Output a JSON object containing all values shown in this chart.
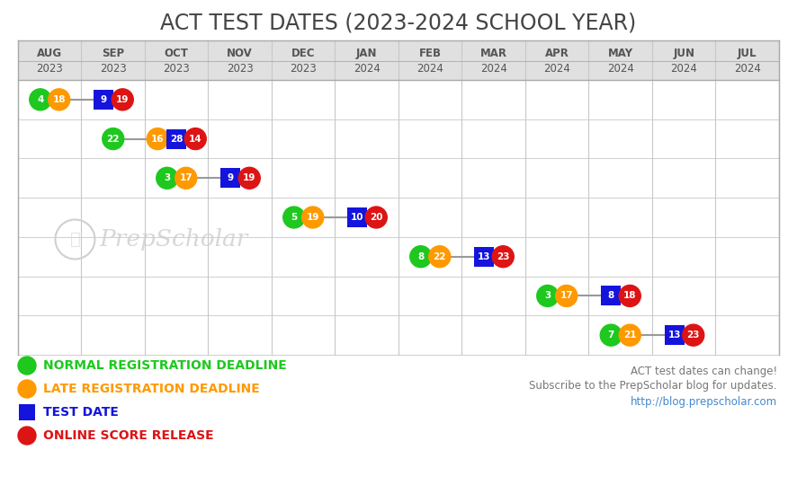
{
  "title": "ACT TEST DATES (2023-2024 SCHOOL YEAR)",
  "month_labels_top": [
    "AUG",
    "SEP",
    "OCT",
    "NOV",
    "DEC",
    "JAN",
    "FEB",
    "MAR",
    "APR",
    "MAY",
    "JUN",
    "JUL"
  ],
  "month_labels_bot": [
    "2023",
    "2023",
    "2023",
    "2023",
    "2023",
    "2024",
    "2024",
    "2024",
    "2024",
    "2024",
    "2024",
    "2024"
  ],
  "rows": [
    {
      "events": [
        {
          "month_idx": 0,
          "label": "4",
          "type": "green"
        },
        {
          "month_idx": 0,
          "label": "18",
          "type": "orange"
        },
        {
          "month_idx": 1,
          "label": "9",
          "type": "blue_sq"
        },
        {
          "month_idx": 1,
          "label": "19",
          "type": "red"
        }
      ]
    },
    {
      "events": [
        {
          "month_idx": 1,
          "label": "22",
          "type": "green"
        },
        {
          "month_idx": 2,
          "label": "16",
          "type": "orange"
        },
        {
          "month_idx": 2,
          "label": "28",
          "type": "blue_sq"
        },
        {
          "month_idx": 2,
          "label": "14",
          "type": "red"
        }
      ]
    },
    {
      "events": [
        {
          "month_idx": 2,
          "label": "3",
          "type": "green"
        },
        {
          "month_idx": 2,
          "label": "17",
          "type": "orange"
        },
        {
          "month_idx": 3,
          "label": "9",
          "type": "blue_sq"
        },
        {
          "month_idx": 3,
          "label": "19",
          "type": "red"
        }
      ]
    },
    {
      "events": [
        {
          "month_idx": 4,
          "label": "5",
          "type": "green"
        },
        {
          "month_idx": 4,
          "label": "19",
          "type": "orange"
        },
        {
          "month_idx": 5,
          "label": "10",
          "type": "blue_sq"
        },
        {
          "month_idx": 5,
          "label": "20",
          "type": "red"
        }
      ]
    },
    {
      "events": [
        {
          "month_idx": 6,
          "label": "8",
          "type": "green"
        },
        {
          "month_idx": 6,
          "label": "22",
          "type": "orange"
        },
        {
          "month_idx": 7,
          "label": "13",
          "type": "blue_sq"
        },
        {
          "month_idx": 7,
          "label": "23",
          "type": "red"
        }
      ]
    },
    {
      "events": [
        {
          "month_idx": 8,
          "label": "3",
          "type": "green"
        },
        {
          "month_idx": 8,
          "label": "17",
          "type": "orange"
        },
        {
          "month_idx": 9,
          "label": "8",
          "type": "blue_sq"
        },
        {
          "month_idx": 9,
          "label": "18",
          "type": "red"
        }
      ]
    },
    {
      "events": [
        {
          "month_idx": 9,
          "label": "7",
          "type": "green"
        },
        {
          "month_idx": 9,
          "label": "21",
          "type": "orange"
        },
        {
          "month_idx": 10,
          "label": "13",
          "type": "blue_sq"
        },
        {
          "month_idx": 10,
          "label": "23",
          "type": "red"
        }
      ]
    }
  ],
  "colors": {
    "green": "#1ec81e",
    "orange": "#ff9900",
    "blue_sq": "#1414dd",
    "red": "#dd1414"
  },
  "legend_items": [
    {
      "color": "#1ec81e",
      "type": "circle",
      "label": "NORMAL REGISTRATION DEADLINE"
    },
    {
      "color": "#ff9900",
      "type": "circle",
      "label": "LATE REGISTRATION DEADLINE"
    },
    {
      "color": "#1414dd",
      "type": "square",
      "label": "TEST DATE"
    },
    {
      "color": "#dd1414",
      "type": "circle",
      "label": "ONLINE SCORE RELEASE"
    }
  ],
  "footnote1": "ACT test dates can change!",
  "footnote2": "Subscribe to the PrepScholar blog for updates.",
  "footnote3": "http://blog.prepscholar.com",
  "bg_color": "#ffffff",
  "grid_color": "#c8c8c8",
  "header_bg": "#e0e0e0",
  "title_color": "#444444",
  "watermark_color": "#d0d0d0"
}
